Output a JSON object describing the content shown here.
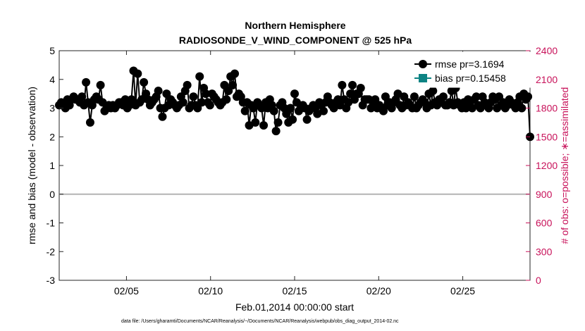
{
  "chart_data": {
    "type": "line",
    "title": "Northern Hemisphere",
    "subtitle": "RADIOSONDE_V_WIND_COMPONENT @ 525 hPa",
    "xlabel": "Feb.01,2014 00:00:00 start",
    "ylabel_left": "rmse and bias (model - observation)",
    "ylabel_right": "# of obs: o=possible; ∗=assimilated",
    "xlim": [
      1.0,
      29.0
    ],
    "ylim_left": [
      -3,
      5
    ],
    "ylim_right": [
      0,
      2400
    ],
    "xticks": [
      5,
      10,
      15,
      20,
      25
    ],
    "xtick_labels": [
      "02/05",
      "02/10",
      "02/15",
      "02/20",
      "02/25"
    ],
    "yticks_left": [
      "5",
      "4",
      "3",
      "2",
      "1",
      "0",
      "-1",
      "-2",
      "-3"
    ],
    "yticks_right": [
      "2400",
      "2100",
      "1800",
      "1500",
      "1200",
      "900",
      "600",
      "300",
      "0"
    ],
    "legend_location": "top-right",
    "zero_line": 0,
    "footer": "data file: /Users/gharamti/Documents/NCAR/Reanalysis/~/Documents/NCAR/Reanalysis/webpub/obs_diag_output_2014-02.nc",
    "series": [
      {
        "name": "rmse pr=3.1694",
        "color": "#000000",
        "marker": "circle-filled",
        "axis": "left",
        "values": [
          3.1,
          3.2,
          3.1,
          3.0,
          3.3,
          3.1,
          3.3,
          3.4,
          3.3,
          3.3,
          3.2,
          3.4,
          3.1,
          3.9,
          3.2,
          2.5,
          3.1,
          3.3,
          3.4,
          3.3,
          3.8,
          3.2,
          2.9,
          3.0,
          3.1,
          3.0,
          3.1,
          3.0,
          3.1,
          3.2,
          3.2,
          3.1,
          3.3,
          3.0,
          3.1,
          3.3,
          4.3,
          3.1,
          4.2,
          3.2,
          3.3,
          3.9,
          3.5,
          3.3,
          3.1,
          3.2,
          3.3,
          3.4,
          3.6,
          3.0,
          2.7,
          3.0,
          3.5,
          3.1,
          3.3,
          3.2,
          3.1,
          3.0,
          3.1,
          3.4,
          3.2,
          3.6,
          3.8,
          3.0,
          3.1,
          3.4,
          3.1,
          3.0,
          4.1,
          3.2,
          3.7,
          3.5,
          3.2,
          3.1,
          3.5,
          3.4,
          3.3,
          3.2,
          3.1,
          3.2,
          3.8,
          3.3,
          3.6,
          4.1,
          3.8,
          4.2,
          3.4,
          3.5,
          3.4,
          3.2,
          2.9,
          3.2,
          2.4,
          3.1,
          3.0,
          2.5,
          3.2,
          3.1,
          3.0,
          2.4,
          3.2,
          3.0,
          3.3,
          3.1,
          2.9,
          2.2,
          2.5,
          3.1,
          3.2,
          3.0,
          2.8,
          2.5,
          3.0,
          2.6,
          3.5,
          3.2,
          2.9,
          3.0,
          3.1,
          3.0,
          2.6,
          2.9,
          3.0,
          3.1,
          3.0,
          2.8,
          3.2,
          3.1,
          2.9,
          3.2,
          3.4,
          3.2,
          3.1,
          3.0,
          3.2,
          3.3,
          3.1,
          3.8,
          3.3,
          3.0,
          3.2,
          3.5,
          3.8,
          3.3,
          3.5,
          3.5,
          3.7,
          3.1,
          3.3,
          3.3,
          3.3,
          3.0,
          3.2,
          3.3,
          3.0,
          3.1,
          3.0,
          2.9,
          3.4,
          3.1,
          3.2,
          3.0,
          3.2,
          3.3,
          3.5,
          3.1,
          3.0,
          3.4,
          3.1,
          3.2,
          3.1,
          3.0,
          3.4,
          3.0,
          3.1,
          3.2,
          3.3,
          3.2,
          3.0,
          3.5,
          3.1,
          3.6,
          3.2,
          3.1,
          3.3,
          3.2,
          3.4,
          3.1,
          3.1,
          3.2,
          3.6,
          3.1,
          3.7,
          3.2,
          3.1,
          3.0,
          3.2,
          3.0,
          3.3,
          3.2,
          3.0,
          3.3,
          3.4,
          3.1,
          3.0,
          3.4,
          3.2,
          3.1,
          3.0,
          3.2,
          3.4,
          3.3,
          3.0,
          3.4,
          3.1,
          3.2,
          3.0,
          3.1,
          3.3,
          3.2,
          3.1,
          3.0,
          3.2,
          3.4,
          3.0,
          3.5,
          3.3,
          3.4,
          2.0
        ]
      }
    ]
  }
}
